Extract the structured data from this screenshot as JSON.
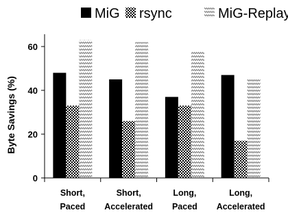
{
  "chart_data": {
    "type": "bar",
    "categories": [
      [
        "Short,",
        "Paced"
      ],
      [
        "Short,",
        "Accelerated"
      ],
      [
        "Long,",
        "Paced"
      ],
      [
        "Long,",
        "Accelerated"
      ]
    ],
    "series": [
      {
        "name": "MiG",
        "values": [
          48,
          45,
          37,
          47
        ],
        "pattern": "solid",
        "color": "#000000"
      },
      {
        "name": "rsync",
        "values": [
          33,
          26,
          33,
          17
        ],
        "pattern": "checker",
        "color": "#000000"
      },
      {
        "name": "MiG-Replay",
        "values": [
          63,
          62,
          58,
          45
        ],
        "pattern": "zigzag",
        "color": "#7a7a7a"
      }
    ],
    "ylabel": "Byte Savings (%)",
    "xlabel": "",
    "ylim": [
      0,
      65
    ],
    "yticks": [
      0,
      20,
      40,
      60
    ],
    "grid": false,
    "legend_position": "top"
  }
}
